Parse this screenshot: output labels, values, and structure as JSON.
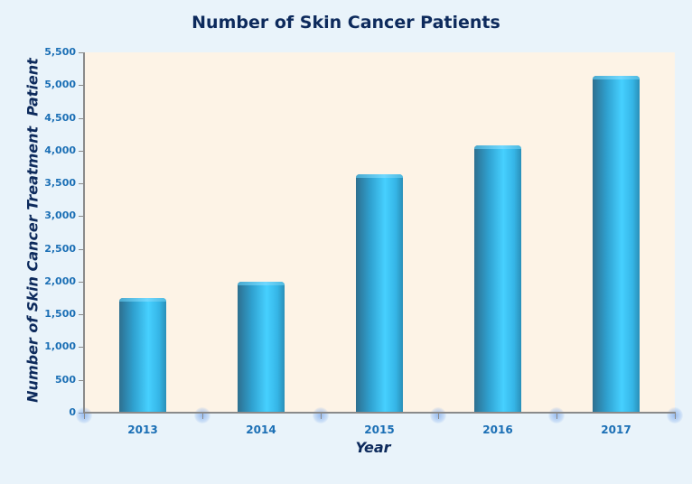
{
  "chart_data": {
    "type": "bar",
    "title": "Number of Skin Cancer Patients",
    "xlabel": "Year",
    "ylabel": "Number of Skin Cancer Treatment  Patient",
    "categories": [
      "2013",
      "2014",
      "2015",
      "2016",
      "2017"
    ],
    "values": [
      1750,
      2000,
      3640,
      4080,
      5140
    ],
    "ylim": [
      0,
      5500
    ],
    "yticks": [
      "0",
      "500",
      "1,000",
      "1,500",
      "2,000",
      "2,500",
      "3,000",
      "3,500",
      "4,000",
      "4,500",
      "5,000",
      "5,500"
    ],
    "grid": false,
    "legend": null,
    "colors": {
      "bar": "#3cc4f5",
      "plot_background": "#fdf3e6",
      "page_background": "#e9f3fa",
      "title": "#0d2a5c",
      "tick_labels": "#1b6fb5"
    }
  }
}
